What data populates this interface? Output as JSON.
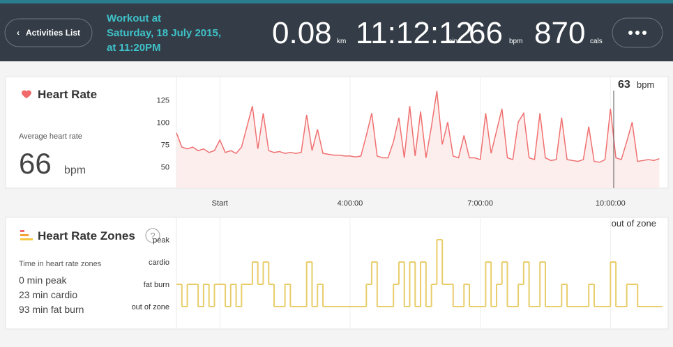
{
  "header": {
    "back_button": "Activities List",
    "title_lines": [
      "Workout at",
      "Saturday, 18 July 2015,",
      "at 11:20PM"
    ],
    "stats": [
      {
        "value": "0.08",
        "unit": "km"
      },
      {
        "value": "11:12:12",
        "unit": "min"
      },
      {
        "value": 66,
        "unit": "bpm"
      },
      {
        "value": 870,
        "unit": "cals"
      }
    ]
  },
  "heart_rate": {
    "title": "Heart Rate",
    "avg_label": "Average heart rate",
    "avg_value": 66,
    "avg_unit": "bpm",
    "current_value": 63,
    "current_unit": "bpm",
    "chart_data": {
      "type": "line",
      "color": "#f07070",
      "xlim": [
        0,
        11.2
      ],
      "xticks": [
        {
          "value": 1,
          "label": "Start"
        },
        {
          "value": 4,
          "label": "4:00:00"
        },
        {
          "value": 7,
          "label": "7:00:00"
        },
        {
          "value": 10,
          "label": "10:00:00"
        }
      ],
      "ylim": [
        26,
        151
      ],
      "yticks": [
        50,
        75,
        100,
        125
      ],
      "x": [
        0,
        0.125,
        0.25,
        0.375,
        0.5,
        0.625,
        0.75,
        0.875,
        1,
        1.125,
        1.25,
        1.375,
        1.5,
        1.625,
        1.75,
        1.875,
        2,
        2.125,
        2.25,
        2.375,
        2.5,
        2.625,
        2.75,
        2.875,
        3,
        3.125,
        3.25,
        3.375,
        3.5,
        3.625,
        3.75,
        3.875,
        4,
        4.125,
        4.25,
        4.375,
        4.5,
        4.625,
        4.75,
        4.875,
        5,
        5.125,
        5.25,
        5.375,
        5.5,
        5.625,
        5.75,
        5.875,
        6,
        6.125,
        6.25,
        6.375,
        6.5,
        6.625,
        6.75,
        6.875,
        7,
        7.125,
        7.25,
        7.375,
        7.5,
        7.625,
        7.75,
        7.875,
        8,
        8.125,
        8.25,
        8.375,
        8.5,
        8.625,
        8.75,
        8.875,
        9,
        9.125,
        9.25,
        9.375,
        9.5,
        9.625,
        9.75,
        9.875,
        10,
        10.125,
        10.25,
        10.375,
        10.5,
        10.625,
        10.75,
        10.875,
        11,
        11.125
      ],
      "values": [
        88,
        72,
        70,
        72,
        68,
        70,
        66,
        68,
        80,
        66,
        68,
        65,
        72,
        95,
        118,
        70,
        110,
        68,
        66,
        67,
        65,
        66,
        65,
        66,
        108,
        68,
        92,
        65,
        64,
        63,
        63,
        62,
        62,
        61,
        62,
        85,
        110,
        62,
        60,
        60,
        78,
        105,
        60,
        118,
        62,
        112,
        60,
        95,
        135,
        75,
        100,
        62,
        60,
        85,
        60,
        60,
        58,
        110,
        65,
        90,
        115,
        60,
        58,
        100,
        110,
        60,
        58,
        110,
        60,
        57,
        58,
        105,
        58,
        57,
        56,
        58,
        95,
        56,
        55,
        58,
        115,
        60,
        58,
        78,
        100,
        56,
        57,
        58,
        57,
        59
      ]
    }
  },
  "zones": {
    "title": "Heart Rate Zones",
    "help": "?",
    "summary_label": "Time in heart rate zones",
    "summary": [
      "0 min peak",
      "23 min cardio",
      "93 min fat burn"
    ],
    "current_zone": "out of zone",
    "chart_data": {
      "type": "step",
      "color": "#e8cd6a",
      "ylim": [
        -1,
        4
      ],
      "yticks": [
        {
          "value": 0,
          "label": "out of zone"
        },
        {
          "value": 1,
          "label": "fat burn"
        },
        {
          "value": 2,
          "label": "cardio"
        },
        {
          "value": 3,
          "label": "peak"
        }
      ],
      "values": [
        1,
        0,
        1,
        1,
        0,
        1,
        0,
        1,
        1,
        0,
        1,
        0,
        1,
        1,
        2,
        1,
        2,
        1,
        0,
        0,
        1,
        0,
        0,
        0,
        2,
        0,
        1,
        0,
        0,
        0,
        0,
        0,
        0,
        0,
        0,
        1,
        2,
        0,
        0,
        0,
        1,
        2,
        0,
        2,
        0,
        2,
        0,
        1,
        3,
        1,
        1,
        0,
        0,
        1,
        0,
        0,
        0,
        2,
        0,
        1,
        2,
        0,
        0,
        1,
        2,
        0,
        0,
        2,
        0,
        0,
        0,
        1,
        0,
        0,
        0,
        0,
        1,
        0,
        0,
        0,
        2,
        0,
        0,
        1,
        1,
        0,
        0,
        0,
        0,
        0
      ]
    }
  }
}
